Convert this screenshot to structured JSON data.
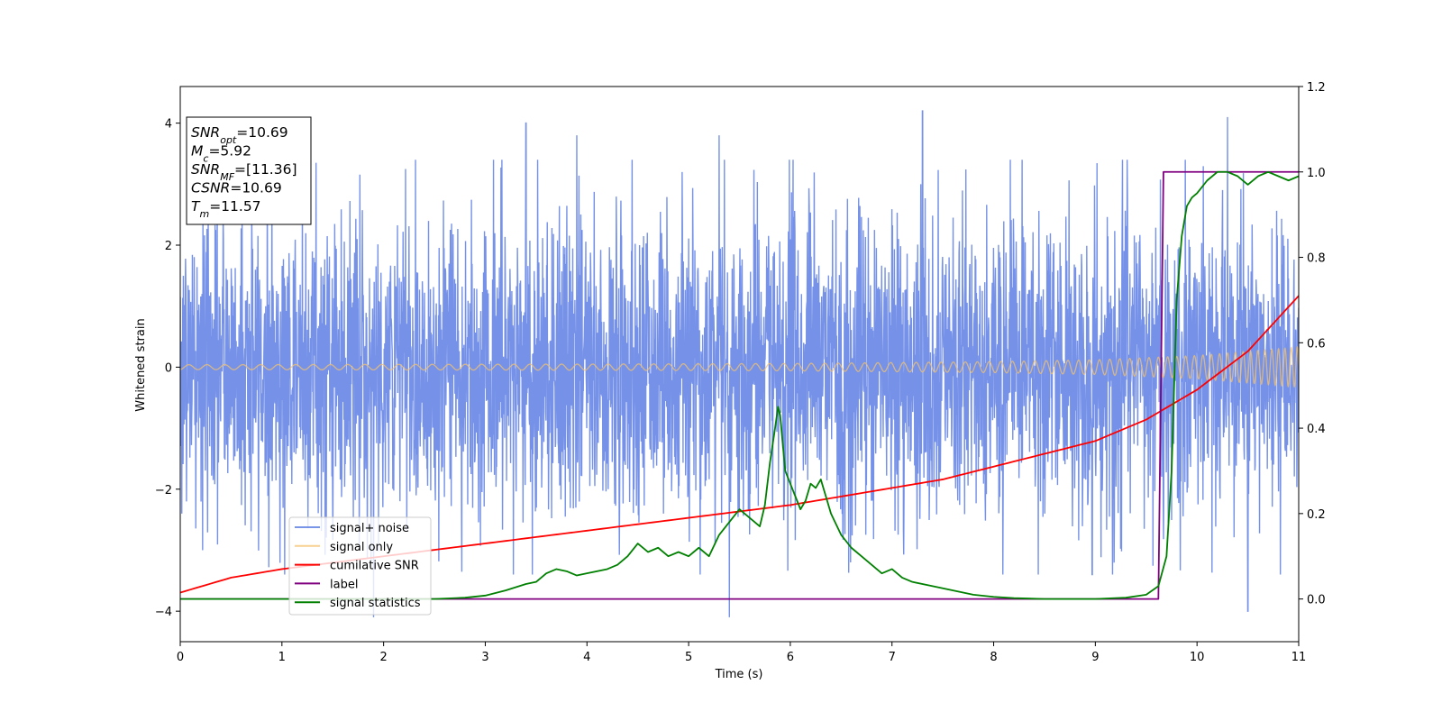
{
  "chart_data": {
    "type": "line",
    "xlabel": "Time (s)",
    "ylabel": "Whitened strain",
    "xlim": [
      0,
      11
    ],
    "ylim_left": [
      -4.5,
      4.6
    ],
    "ylim_right": [
      -0.1,
      1.2
    ],
    "xticks": [
      "0",
      "1",
      "2",
      "3",
      "4",
      "5",
      "6",
      "7",
      "8",
      "9",
      "10",
      "11"
    ],
    "yticks_left": [
      "−4",
      "−2",
      "0",
      "2",
      "4"
    ],
    "yticks_right": [
      "0.0",
      "0.2",
      "0.4",
      "0.6",
      "0.8",
      "1.0",
      "1.2"
    ],
    "grid": false,
    "legend_position": "lower-left",
    "info_box": [
      {
        "base": "SNR",
        "sub": "opt",
        "rest": "=10.69"
      },
      {
        "base": "M",
        "sub": "c",
        "rest": "=5.92"
      },
      {
        "base": "SNR",
        "sub": "MF",
        "rest": "=[11.36]"
      },
      {
        "base": "CSNR",
        "sub": "",
        "rest": "=10.69"
      },
      {
        "base": "T",
        "sub": "m",
        "rest": "=11.57"
      }
    ],
    "series": [
      {
        "name": "signal+ noise",
        "color": "#6a89e6",
        "axis": "left",
        "description_values": {
          "envelope_typical": 2.0,
          "peaks": [
            [
              1.2,
              3.1
            ],
            [
              3.4,
              4.0
            ],
            [
              3.9,
              3.8
            ],
            [
              5.3,
              3.8
            ],
            [
              7.3,
              4.2
            ],
            [
              10.3,
              4.1
            ],
            [
              5.4,
              -4.1
            ],
            [
              1.9,
              -4.1
            ],
            [
              10.5,
              -4.0
            ]
          ]
        }
      },
      {
        "name": "signal only",
        "color": "#f6c26b",
        "axis": "left",
        "amplitude": {
          "x": [
            0,
            2,
            4,
            6,
            8,
            9,
            10,
            11
          ],
          "y": [
            0.04,
            0.045,
            0.05,
            0.06,
            0.09,
            0.12,
            0.19,
            0.33
          ]
        }
      },
      {
        "name": "cumilative SNR",
        "color": "#ff0000",
        "axis": "right",
        "x": [
          0,
          0.5,
          1,
          1.5,
          2,
          3,
          4,
          5,
          6,
          7,
          7.5,
          8,
          8.5,
          9,
          9.5,
          10,
          10.5,
          11
        ],
        "y": [
          0.015,
          0.05,
          0.07,
          0.085,
          0.1,
          0.13,
          0.16,
          0.19,
          0.22,
          0.26,
          0.28,
          0.31,
          0.34,
          0.37,
          0.42,
          0.49,
          0.58,
          0.71
        ]
      },
      {
        "name": "label",
        "color": "#800080",
        "axis": "right",
        "x": [
          0,
          9.62,
          9.67,
          11
        ],
        "y": [
          0.0,
          0.0,
          1.0,
          1.0
        ]
      },
      {
        "name": "signal statistics",
        "color": "#008000",
        "axis": "right",
        "x": [
          0,
          1,
          2,
          2.5,
          2.8,
          3.0,
          3.2,
          3.4,
          3.5,
          3.6,
          3.7,
          3.8,
          3.9,
          4.0,
          4.2,
          4.3,
          4.4,
          4.5,
          4.6,
          4.7,
          4.8,
          4.9,
          5.0,
          5.1,
          5.2,
          5.3,
          5.4,
          5.5,
          5.6,
          5.7,
          5.75,
          5.8,
          5.85,
          5.88,
          5.9,
          5.95,
          6.0,
          6.05,
          6.1,
          6.15,
          6.2,
          6.25,
          6.3,
          6.35,
          6.4,
          6.5,
          6.6,
          6.7,
          6.8,
          6.9,
          7.0,
          7.1,
          7.2,
          7.4,
          7.6,
          7.8,
          8.0,
          8.2,
          8.5,
          9.0,
          9.3,
          9.5,
          9.62,
          9.7,
          9.75,
          9.8,
          9.85,
          9.9,
          9.95,
          10.0,
          10.1,
          10.2,
          10.3,
          10.4,
          10.5,
          10.6,
          10.7,
          10.8,
          10.9,
          11.0
        ],
        "y": [
          0.0,
          0.0,
          0.0,
          0.0,
          0.003,
          0.008,
          0.02,
          0.035,
          0.04,
          0.06,
          0.07,
          0.065,
          0.055,
          0.06,
          0.07,
          0.08,
          0.1,
          0.13,
          0.11,
          0.12,
          0.1,
          0.11,
          0.1,
          0.12,
          0.1,
          0.15,
          0.18,
          0.21,
          0.19,
          0.17,
          0.22,
          0.32,
          0.4,
          0.45,
          0.43,
          0.3,
          0.27,
          0.24,
          0.21,
          0.23,
          0.27,
          0.26,
          0.28,
          0.24,
          0.2,
          0.15,
          0.12,
          0.1,
          0.08,
          0.06,
          0.07,
          0.05,
          0.04,
          0.03,
          0.02,
          0.01,
          0.005,
          0.002,
          0.0,
          0.0,
          0.003,
          0.01,
          0.03,
          0.1,
          0.3,
          0.7,
          0.85,
          0.92,
          0.94,
          0.95,
          0.98,
          1.0,
          1.0,
          0.99,
          0.97,
          0.99,
          1.0,
          0.99,
          0.98,
          0.99
        ]
      }
    ]
  }
}
